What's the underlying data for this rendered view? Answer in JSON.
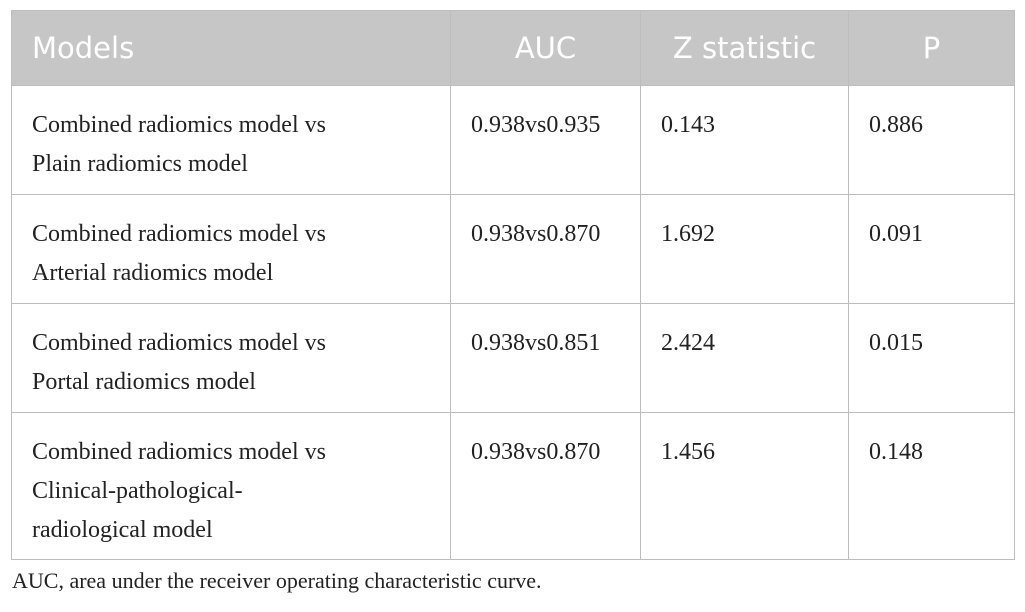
{
  "table": {
    "header": [
      "Models",
      "AUC",
      "Z statistic",
      "P"
    ],
    "rows": [
      [
        [
          "Combined radiomics model vs",
          "Plain radiomics model"
        ],
        "0.938vs0.935",
        "0.143",
        "0.886"
      ],
      [
        [
          "Combined radiomics model vs",
          "Arterial radiomics model"
        ],
        "0.938vs0.870",
        "1.692",
        "0.091"
      ],
      [
        [
          "Combined radiomics model vs",
          "Portal radiomics model"
        ],
        "0.938vs0.851",
        "2.424",
        "0.015"
      ],
      [
        [
          "Combined radiomics model vs",
          "Clinical-pathological-",
          "radiological model"
        ],
        "0.938vs0.870",
        "1.456",
        "0.148"
      ]
    ]
  },
  "footnote": "AUC, area under the receiver operating characteristic curve."
}
